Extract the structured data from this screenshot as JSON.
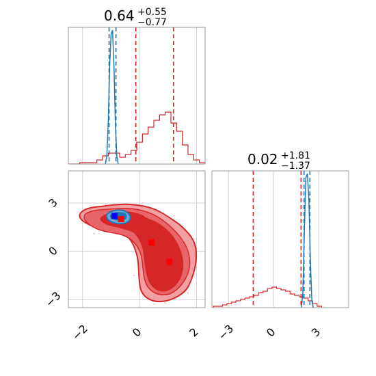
{
  "colors": {
    "red_series": "#d62728",
    "blue_series": "#1f77b4",
    "red_marker": "#ff0000",
    "blue_marker": "#0000ff",
    "red_fill_light": "#f2a0a2",
    "red_fill_mid": "#e8656a",
    "red_fill_dark": "#d62728"
  },
  "chart_data": [
    {
      "type": "histogram",
      "panel": "top-left",
      "title_main": "0.64",
      "title_plus": "+0.55",
      "title_minus": "−0.77",
      "xlim": [
        -2.5,
        2.3
      ],
      "xticks": [
        -2,
        0,
        2
      ],
      "series": [
        {
          "color": "#d62728",
          "bin_edges": [
            -2.5,
            -2.3,
            -2.1,
            -1.9,
            -1.7,
            -1.5,
            -1.3,
            -1.1,
            -0.9,
            -0.7,
            -0.5,
            -0.3,
            -0.1,
            0.1,
            0.3,
            0.5,
            0.7,
            0.9,
            1.1,
            1.3,
            1.5,
            1.7,
            1.9,
            2.1,
            2.3
          ],
          "counts": [
            0,
            0,
            0.01,
            0.01,
            0.01,
            0.03,
            0.06,
            0.08,
            0.08,
            0.05,
            0.07,
            0.1,
            0.16,
            0.22,
            0.27,
            0.32,
            0.36,
            0.38,
            0.3,
            0.24,
            0.14,
            0.07,
            0.03,
            0.01
          ],
          "dashed_lines": [
            -0.13,
            1.19
          ]
        },
        {
          "color": "#1f77b4",
          "x": [
            -1.2,
            -1.15,
            -1.1,
            -1.05,
            -1.0,
            -0.95,
            -0.9,
            -0.85,
            -0.8,
            -0.75
          ],
          "y": [
            0,
            0.06,
            0.3,
            0.72,
            0.95,
            0.98,
            0.72,
            0.3,
            0.06,
            0
          ],
          "dashed_lines": [
            -1.07,
            -0.83
          ]
        }
      ]
    },
    {
      "type": "contour",
      "panel": "bottom-left",
      "xlim": [
        -2.5,
        2.3
      ],
      "ylim": [
        -3.5,
        5.0
      ],
      "xticks": [
        -2,
        0,
        2
      ],
      "yticks": [
        -3,
        0,
        3
      ],
      "series": [
        {
          "color": "#d62728",
          "levels": [
            "outer",
            "middle",
            "inner"
          ],
          "markers": [
            [
              -0.65,
              2.0
            ],
            [
              0.42,
              0.55
            ],
            [
              1.05,
              -0.65
            ]
          ]
        },
        {
          "color": "#1f77b4",
          "markers": [
            [
              -0.88,
              2.2
            ]
          ]
        }
      ]
    },
    {
      "type": "histogram",
      "panel": "bottom-right",
      "title_main": "0.02",
      "title_plus": "+1.81",
      "title_minus": "−1.37",
      "xlim": [
        -4.1,
        5.0
      ],
      "xticks": [
        -3,
        0,
        3
      ],
      "series": [
        {
          "color": "#d62728",
          "bin_edges": [
            -4.0,
            -3.7,
            -3.4,
            -3.1,
            -2.8,
            -2.5,
            -2.2,
            -1.9,
            -1.6,
            -1.3,
            -1.0,
            -0.7,
            -0.4,
            -0.1,
            0.2,
            0.5,
            0.8,
            1.1,
            1.4,
            1.7,
            2.0,
            2.3,
            2.6,
            2.9,
            3.2
          ],
          "counts": [
            0.01,
            0.01,
            0.02,
            0.03,
            0.04,
            0.05,
            0.06,
            0.07,
            0.08,
            0.09,
            0.11,
            0.12,
            0.14,
            0.15,
            0.14,
            0.13,
            0.12,
            0.1,
            0.09,
            0.08,
            0.07,
            0.05,
            0.03,
            0.01
          ],
          "dashed_lines": [
            -1.35,
            1.83
          ]
        },
        {
          "color": "#1f77b4",
          "x": [
            1.85,
            1.95,
            2.05,
            2.15,
            2.25,
            2.35,
            2.45,
            2.55,
            2.65
          ],
          "y": [
            0,
            0.1,
            0.55,
            0.95,
            0.98,
            0.8,
            0.35,
            0.05,
            0
          ],
          "dashed_lines": [
            2.03,
            2.42
          ]
        }
      ]
    }
  ]
}
